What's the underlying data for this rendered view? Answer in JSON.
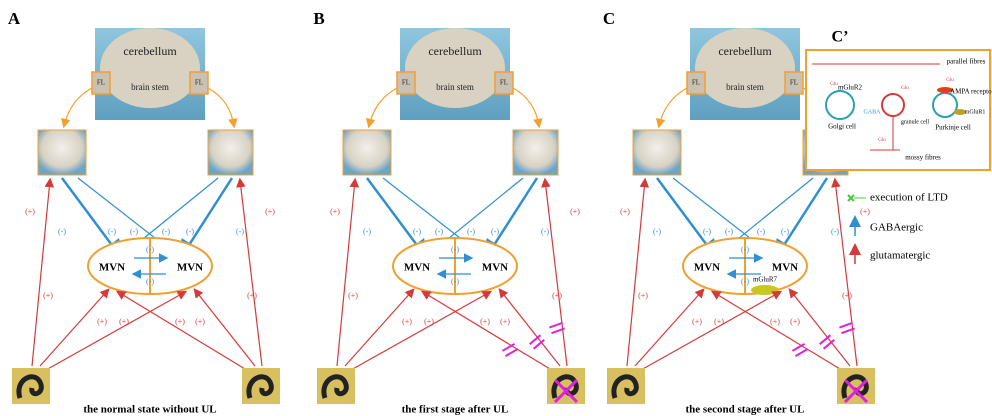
{
  "labels": {
    "cerebellum": "cerebellum",
    "brain_stem": "brain stem",
    "fl": "FL",
    "inhibitory": "(-)",
    "excitatory": "(+)",
    "mvn": "MVN"
  },
  "panels": [
    {
      "label": "A",
      "caption": "the normal state without UL"
    },
    {
      "label": "B",
      "caption": "the first stage after UL"
    },
    {
      "label": "C",
      "caption": "the second stage after UL",
      "receptor": "mGluR7"
    }
  ],
  "inset": {
    "label": "C’",
    "parallel_fibres": "parallel fibres",
    "mglur2": "mGluR2",
    "golgi_cell": "Golgi cell",
    "gaba": "GABA",
    "granule_cell": "granule cell",
    "purkinje_cell": "Purkinje cell",
    "ampa_receptor": "AMPA receptor",
    "mglur1": "mGluR1",
    "mossy_fibres": "mossy fibres",
    "glu": "Glu"
  },
  "legend": {
    "ltd": "execution of LTD",
    "gabaergic": "GABAergic",
    "glutamatergic": "glutamatergic"
  }
}
